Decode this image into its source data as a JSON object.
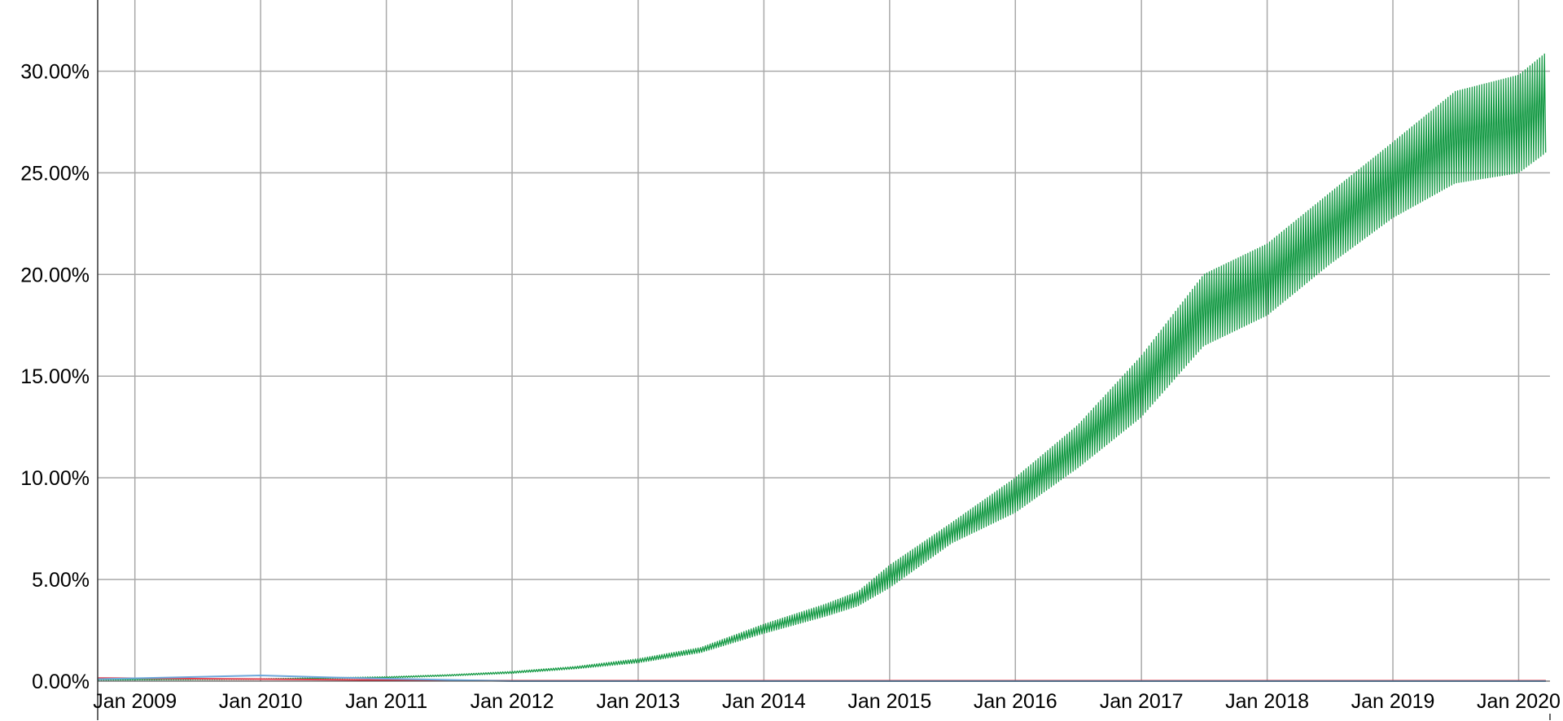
{
  "chart_data": {
    "type": "line",
    "title": "",
    "xlabel": "",
    "ylabel": "",
    "x_range": [
      "2008-09-15",
      "2020-04-01"
    ],
    "ylim": [
      0,
      33.5
    ],
    "y_ticks": [
      0,
      5,
      10,
      15,
      20,
      25,
      30
    ],
    "y_tick_labels": [
      "0.00%",
      "5.00%",
      "10.00%",
      "15.00%",
      "20.00%",
      "25.00%",
      "30.00%"
    ],
    "x_ticks": [
      "2009-01-01",
      "2010-01-01",
      "2011-01-01",
      "2012-01-01",
      "2013-01-01",
      "2014-01-01",
      "2015-01-01",
      "2016-01-01",
      "2017-01-01",
      "2018-01-01",
      "2019-01-01",
      "2020-01-01"
    ],
    "x_tick_labels": [
      "Jan 2009",
      "Jan 2010",
      "Jan 2011",
      "Jan 2012",
      "Jan 2013",
      "Jan 2014",
      "Jan 2015",
      "Jan 2016",
      "Jan 2017",
      "Jan 2018",
      "Jan 2019",
      "Jan 2020"
    ],
    "grid": true,
    "legend": "none",
    "series": [
      {
        "color": "#159a45",
        "weekly_oscillation": true,
        "points": [
          {
            "date": "2008-09-15",
            "low": 0.05,
            "high": 0.1
          },
          {
            "date": "2009-01-01",
            "low": 0.06,
            "high": 0.1
          },
          {
            "date": "2010-01-01",
            "low": 0.08,
            "high": 0.12
          },
          {
            "date": "2011-01-01",
            "low": 0.15,
            "high": 0.22
          },
          {
            "date": "2011-07-01",
            "low": 0.25,
            "high": 0.32
          },
          {
            "date": "2012-01-01",
            "low": 0.38,
            "high": 0.48
          },
          {
            "date": "2012-07-01",
            "low": 0.6,
            "high": 0.72
          },
          {
            "date": "2013-01-01",
            "low": 0.9,
            "high": 1.1
          },
          {
            "date": "2013-07-01",
            "low": 1.4,
            "high": 1.65
          },
          {
            "date": "2014-01-01",
            "low": 2.35,
            "high": 2.8
          },
          {
            "date": "2014-07-01",
            "low": 3.2,
            "high": 3.8
          },
          {
            "date": "2014-10-01",
            "low": 3.7,
            "high": 4.4
          },
          {
            "date": "2015-01-01",
            "low": 4.6,
            "high": 5.7
          },
          {
            "date": "2015-07-01",
            "low": 6.8,
            "high": 7.8
          },
          {
            "date": "2016-01-01",
            "low": 8.3,
            "high": 10.0
          },
          {
            "date": "2016-07-01",
            "low": 10.5,
            "high": 12.6
          },
          {
            "date": "2017-01-01",
            "low": 13.0,
            "high": 16.0
          },
          {
            "date": "2017-07-01",
            "low": 16.5,
            "high": 20.0
          },
          {
            "date": "2018-01-01",
            "low": 18.0,
            "high": 21.5
          },
          {
            "date": "2018-07-01",
            "low": 20.5,
            "high": 24.0
          },
          {
            "date": "2019-01-01",
            "low": 22.8,
            "high": 26.5
          },
          {
            "date": "2019-07-01",
            "low": 24.5,
            "high": 29.0
          },
          {
            "date": "2020-01-01",
            "low": 25.0,
            "high": 29.8
          },
          {
            "date": "2020-03-20",
            "low": 26.0,
            "high": 30.9
          }
        ]
      },
      {
        "color": "#e5404f",
        "points": [
          {
            "date": "2008-09-15",
            "value": 0.15
          },
          {
            "date": "2010-01-01",
            "value": 0.1
          },
          {
            "date": "2011-01-01",
            "value": 0.05
          },
          {
            "date": "2012-01-01",
            "value": 0.02
          },
          {
            "date": "2020-03-20",
            "value": 0.02
          }
        ]
      },
      {
        "color": "#6fa8dc",
        "points": [
          {
            "date": "2008-09-15",
            "value": 0.1
          },
          {
            "date": "2010-01-01",
            "value": 0.28
          },
          {
            "date": "2010-08-01",
            "value": 0.18
          },
          {
            "date": "2011-01-01",
            "value": 0.12
          },
          {
            "date": "2012-01-01",
            "value": 0.0
          },
          {
            "date": "2020-03-20",
            "value": 0.0
          }
        ]
      }
    ]
  }
}
